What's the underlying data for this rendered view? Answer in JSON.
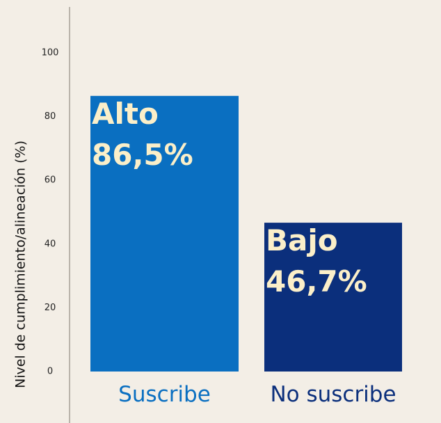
{
  "chart_data": {
    "type": "bar",
    "ylabel": "Nivel de cumplimiento/alineación (%)",
    "categories": [
      "Suscribe",
      "No suscribe"
    ],
    "values": [
      86.5,
      46.7
    ],
    "value_labels": [
      "86,5%",
      "46,7%"
    ],
    "levels": [
      "Alto",
      "Bajo"
    ],
    "colors": [
      "#0a6fc1",
      "#0b2f7c"
    ],
    "ylim": [
      0,
      100
    ],
    "yticks": [
      0,
      20,
      40,
      60,
      80,
      100
    ],
    "grid": false
  }
}
